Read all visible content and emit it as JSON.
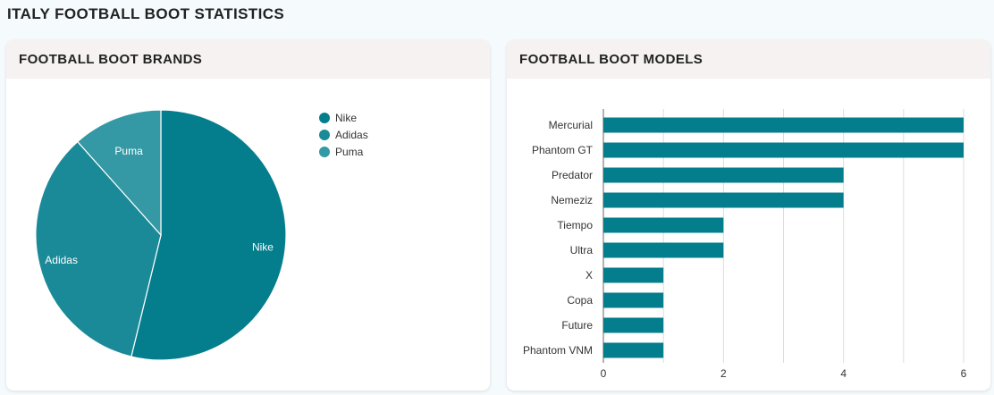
{
  "page": {
    "title": "ITALY FOOTBALL BOOT STATISTICS"
  },
  "brands_card": {
    "title": "FOOTBALL BOOT BRANDS"
  },
  "models_card": {
    "title": "FOOTBALL BOOT MODELS"
  },
  "colors": {
    "nike": "#047d8d",
    "adidas": "#1b8a98",
    "puma": "#3499a5",
    "bar": "#047d8d"
  },
  "chart_data": [
    {
      "type": "pie",
      "title": "FOOTBALL BOOT BRANDS",
      "categories": [
        "Nike",
        "Adidas",
        "Puma"
      ],
      "values": [
        53.8,
        34.6,
        11.6
      ],
      "legend": {
        "position": "top-right",
        "entries": [
          "Nike",
          "Adidas",
          "Puma"
        ]
      }
    },
    {
      "type": "bar",
      "orientation": "horizontal",
      "title": "FOOTBALL BOOT MODELS",
      "categories": [
        "Mercurial",
        "Phantom GT",
        "Predator",
        "Nemeziz",
        "Tiempo",
        "Ultra",
        "X",
        "Copa",
        "Future",
        "Phantom VNM"
      ],
      "values": [
        6,
        6,
        4,
        4,
        2,
        2,
        1,
        1,
        1,
        1
      ],
      "xlim": [
        0,
        6
      ],
      "xticks": [
        "0",
        "2",
        "4",
        "6"
      ],
      "grid": true
    }
  ]
}
